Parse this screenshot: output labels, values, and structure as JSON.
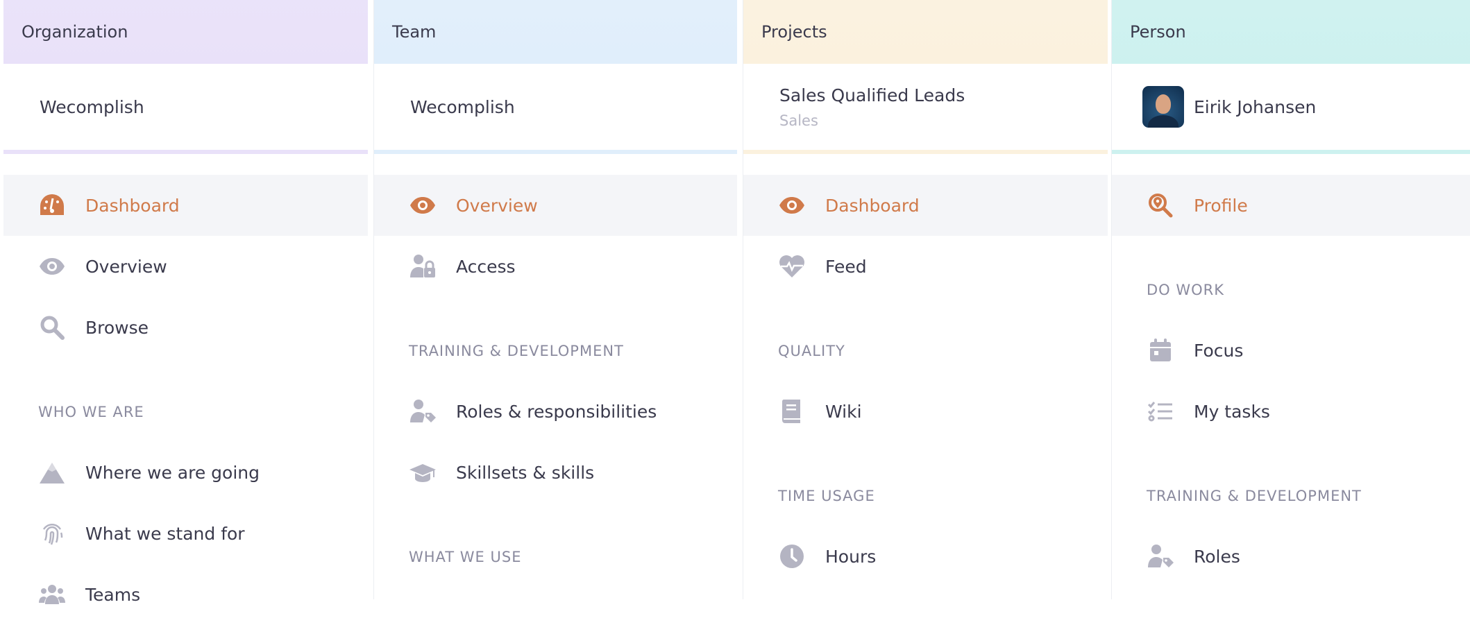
{
  "colors": {
    "accent": "#d07a4a",
    "icon": "#b4b4c2"
  },
  "columns": [
    {
      "header": "Organization",
      "header_color": "#e9e1f9",
      "title": "Wecomplish",
      "nav": [
        {
          "type": "item",
          "label": "Dashboard",
          "icon": "gauge-icon",
          "active": true
        },
        {
          "type": "item",
          "label": "Overview",
          "icon": "eye-icon"
        },
        {
          "type": "item",
          "label": "Browse",
          "icon": "search-icon"
        },
        {
          "type": "section",
          "label": "WHO WE ARE"
        },
        {
          "type": "item",
          "label": "Where we are going",
          "icon": "mountain-icon"
        },
        {
          "type": "item",
          "label": "What we stand for",
          "icon": "fingerprint-icon"
        },
        {
          "type": "item",
          "label": "Teams",
          "icon": "users-icon"
        }
      ]
    },
    {
      "header": "Team",
      "header_color": "#e0eefb",
      "title": "Wecomplish",
      "nav": [
        {
          "type": "item",
          "label": "Overview",
          "icon": "eye-icon",
          "active": true
        },
        {
          "type": "item",
          "label": "Access",
          "icon": "user-lock-icon"
        },
        {
          "type": "section",
          "label": "TRAINING & DEVELOPMENT"
        },
        {
          "type": "item",
          "label": "Roles & responsibilities",
          "icon": "user-tag-icon"
        },
        {
          "type": "item",
          "label": "Skillsets & skills",
          "icon": "graduation-cap-icon"
        },
        {
          "type": "section",
          "label": "WHAT WE USE"
        }
      ]
    },
    {
      "header": "Projects",
      "header_color": "#fbf1de",
      "title": "Sales Qualified Leads",
      "subtitle": "Sales",
      "nav": [
        {
          "type": "item",
          "label": "Dashboard",
          "icon": "eye-icon",
          "active": true
        },
        {
          "type": "item",
          "label": "Feed",
          "icon": "heartbeat-icon"
        },
        {
          "type": "section",
          "label": "QUALITY"
        },
        {
          "type": "item",
          "label": "Wiki",
          "icon": "book-icon"
        },
        {
          "type": "section",
          "label": "TIME USAGE"
        },
        {
          "type": "item",
          "label": "Hours",
          "icon": "clock-icon"
        }
      ]
    },
    {
      "header": "Person",
      "header_color": "#cdf1ef",
      "title": "Eirik Johansen",
      "avatar": true,
      "nav": [
        {
          "type": "item",
          "label": "Profile",
          "icon": "search-location-icon",
          "active": true
        },
        {
          "type": "section",
          "label": "DO WORK"
        },
        {
          "type": "item",
          "label": "Focus",
          "icon": "calendar-icon"
        },
        {
          "type": "item",
          "label": "My tasks",
          "icon": "tasks-icon"
        },
        {
          "type": "section",
          "label": "TRAINING & DEVELOPMENT"
        },
        {
          "type": "item",
          "label": "Roles",
          "icon": "user-tag-icon"
        }
      ]
    }
  ]
}
